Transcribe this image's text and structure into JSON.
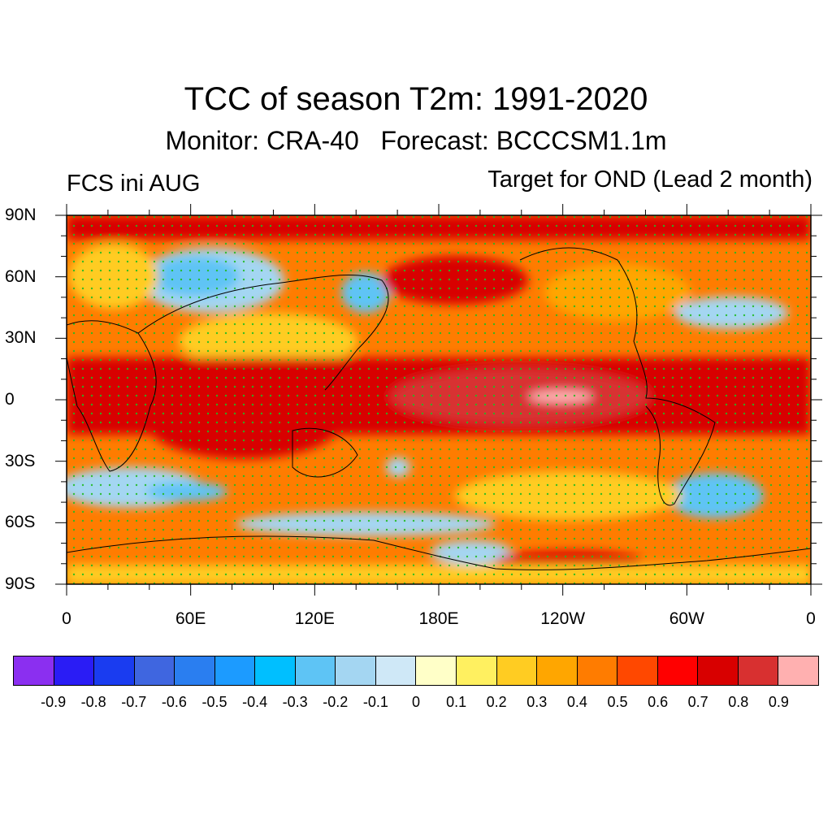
{
  "header": {
    "title": "TCC of season T2m: 1991-2020",
    "subtitle": "Monitor: CRA-40   Forecast: BCCCSM1.1m",
    "left_label": "FCS ini AUG",
    "right_label": "Target for OND (Lead 2 month)"
  },
  "map": {
    "projection": "cylindrical-equidistant",
    "lat_range": [
      -90,
      90
    ],
    "lon_range": [
      0,
      360
    ],
    "lat_labels": [
      "90N",
      "60N",
      "30N",
      "0",
      "30S",
      "60S",
      "90S"
    ],
    "lat_values": [
      90,
      60,
      30,
      0,
      -30,
      -60,
      -90
    ],
    "lon_labels": [
      "0",
      "60E",
      "120E",
      "180E",
      "120W",
      "60W",
      "0"
    ],
    "lon_values": [
      0,
      60,
      120,
      180,
      240,
      300,
      360
    ],
    "stipple_color": "#22bb22",
    "coastline_color": "#000000"
  },
  "colorbar": {
    "colors": [
      "#8b2ff0",
      "#2a1cf5",
      "#1a3cf0",
      "#3f66e0",
      "#2a7ef0",
      "#1c9bff",
      "#00bfff",
      "#5ec4f5",
      "#a4d6f2",
      "#cfe8f7",
      "#ffffc8",
      "#fff060",
      "#ffcc22",
      "#ffa600",
      "#ff7c00",
      "#ff4800",
      "#ff0000",
      "#d80000",
      "#d83030",
      "#ffb0b0"
    ],
    "labels": [
      "-0.9",
      "-0.8",
      "-0.7",
      "-0.6",
      "-0.5",
      "-0.4",
      "-0.3",
      "-0.2",
      "-0.1",
      "0",
      "0.1",
      "0.2",
      "0.3",
      "0.4",
      "0.5",
      "0.6",
      "0.7",
      "0.8",
      "0.9"
    ]
  }
}
